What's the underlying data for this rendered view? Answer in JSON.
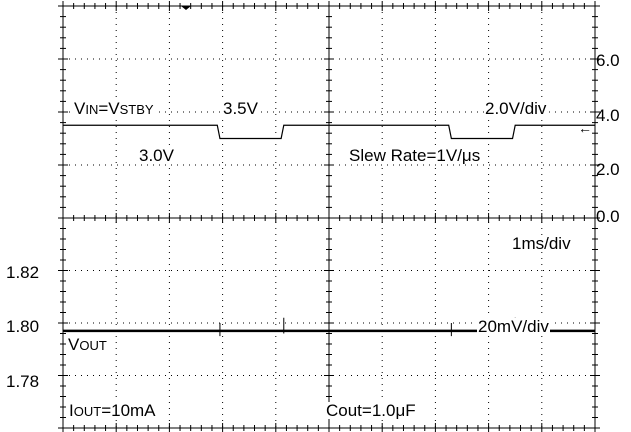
{
  "chart_data": [
    {
      "type": "line",
      "panel": "top",
      "yaxis_side": "right",
      "y_ticks": [
        "6.0",
        "4.0",
        "2.0",
        "0.0"
      ],
      "y_tick_values": [
        6.0,
        4.0,
        2.0,
        0.0
      ],
      "ylim": [
        0.0,
        8.0
      ],
      "x_divisions": 10,
      "series": [
        {
          "x": [
            0.0,
            2.9,
            2.95,
            4.1,
            4.15,
            7.25,
            7.3,
            8.45,
            8.5,
            10.0
          ],
          "y": [
            3.5,
            3.5,
            3.0,
            3.0,
            3.5,
            3.5,
            3.0,
            3.0,
            3.5,
            3.5
          ]
        }
      ],
      "annotations": {
        "vin_prefix": "V",
        "vin_sub": "IN",
        "vin_eq": "=V",
        "vin_sub2": "STBY",
        "high_level": "3.5V",
        "low_level": "3.0V",
        "volts_div": "2.0V/div",
        "slew_rate": "Slew Rate=1V/μs"
      },
      "marker": "←"
    },
    {
      "type": "line",
      "panel": "bottom",
      "yaxis_side": "left",
      "y_ticks": [
        "1.82",
        "1.80",
        "1.78"
      ],
      "y_tick_values": [
        1.82,
        1.8,
        1.78
      ],
      "ylim": [
        1.77,
        1.85
      ],
      "x_divisions": 10,
      "series": [
        {
          "x": [
            0.0,
            10.0
          ],
          "y": [
            1.807,
            1.807
          ]
        }
      ],
      "glitches": [
        {
          "x": 2.95,
          "y_min": 1.805,
          "y_max": 1.81
        },
        {
          "x": 4.15,
          "y_min": 1.806,
          "y_max": 1.812
        },
        {
          "x": 7.3,
          "y_min": 1.805,
          "y_max": 1.81
        },
        {
          "x": 8.5,
          "y_min": 1.806,
          "y_max": 1.812
        }
      ],
      "annotations": {
        "time_div": "1ms/div",
        "volts_div": "20mV/div",
        "vout_prefix": "V",
        "vout_sub": "OUT",
        "iout_prefix": "I",
        "iout_sub": "OUT",
        "iout_value": "=10mA",
        "cout": "Cout=1.0μF"
      }
    }
  ]
}
